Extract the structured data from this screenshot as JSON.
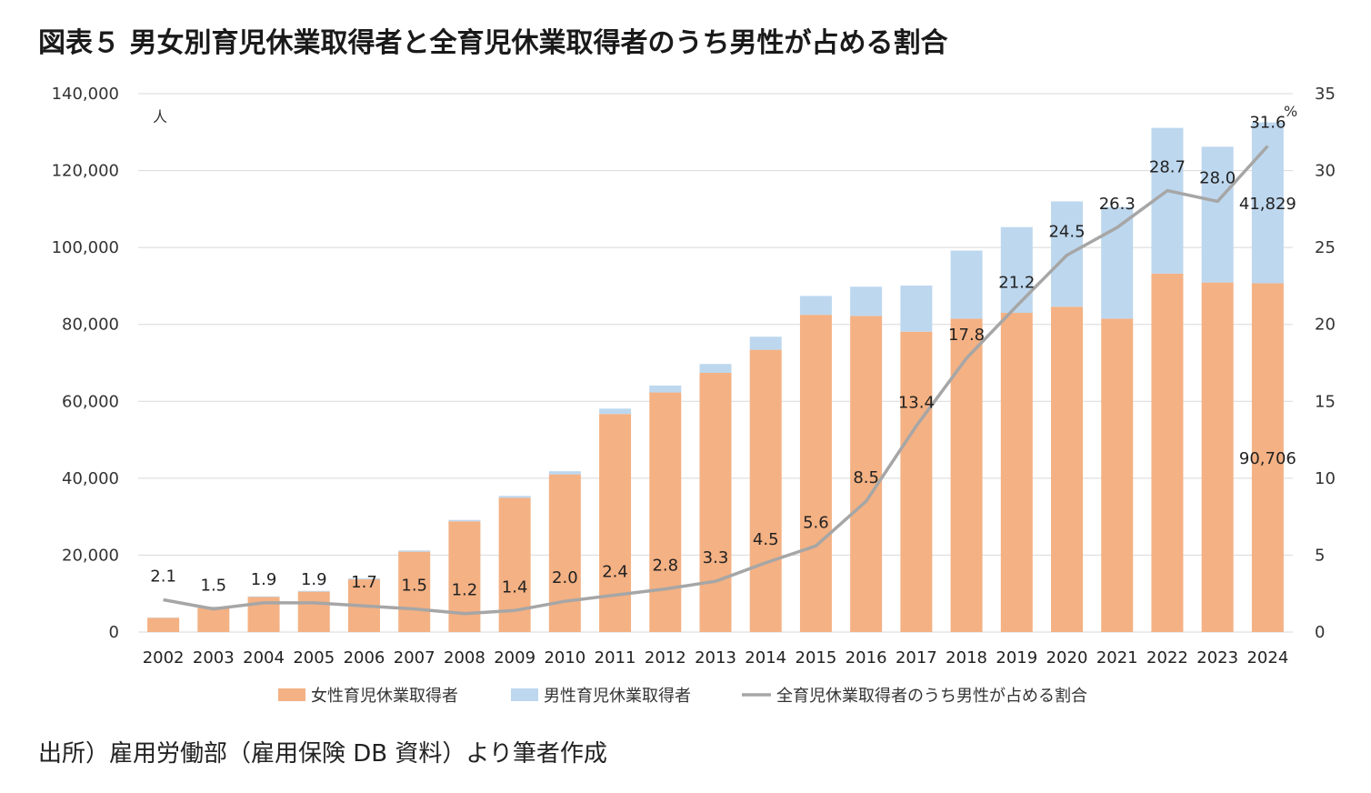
{
  "title": "図表５ 男女別育児休業取得者と全育児休業取得者のうち男性が占める割合",
  "source": "出所）雇用労働部（雇用保険 DB 資料）より筆者作成",
  "colors": {
    "female": "#f4b183",
    "male": "#bdd7ee",
    "line": "#a6a6a6",
    "grid": "#d9d9d9"
  },
  "chart_data": {
    "type": "bar",
    "stacked": true,
    "title": "図表５ 男女別育児休業取得者と全育児休業取得者のうち男性が占める割合",
    "categories": [
      "2002",
      "2003",
      "2004",
      "2005",
      "2006",
      "2007",
      "2008",
      "2009",
      "2010",
      "2011",
      "2012",
      "2013",
      "2014",
      "2015",
      "2016",
      "2017",
      "2018",
      "2019",
      "2020",
      "2021",
      "2022",
      "2023",
      "2024"
    ],
    "left_axis": {
      "unit": "人",
      "ylim": [
        0,
        140000
      ],
      "ticks": [
        "0",
        "20,000",
        "40,000",
        "60,000",
        "80,000",
        "100,000",
        "120,000",
        "140,000"
      ],
      "tick_values": [
        0,
        20000,
        40000,
        60000,
        80000,
        100000,
        120000,
        140000
      ]
    },
    "right_axis": {
      "unit": "%",
      "ylim": [
        0,
        35
      ],
      "ticks": [
        "0",
        "5",
        "10",
        "15",
        "20",
        "25",
        "30",
        "35"
      ],
      "tick_values": [
        0,
        5,
        10,
        15,
        20,
        25,
        30,
        35
      ]
    },
    "series": [
      {
        "name": "女性育児休業取得者",
        "type": "bar",
        "axis": "left",
        "values": [
          3700,
          6500,
          9100,
          10500,
          13700,
          20900,
          28800,
          34900,
          41000,
          56700,
          62300,
          67400,
          73400,
          82500,
          82200,
          78100,
          81500,
          83000,
          84600,
          81500,
          93200,
          90900,
          90706
        ]
      },
      {
        "name": "男性育児休業取得者",
        "type": "bar",
        "axis": "left",
        "values": [
          80,
          100,
          180,
          210,
          230,
          320,
          350,
          500,
          820,
          1400,
          1800,
          2300,
          3400,
          4900,
          7600,
          12000,
          17700,
          22300,
          27400,
          29000,
          37900,
          35300,
          41829
        ]
      },
      {
        "name": "全育児休業取得者のうち男性が占める割合",
        "type": "line",
        "axis": "right",
        "values": [
          2.1,
          1.5,
          1.9,
          1.9,
          1.7,
          1.5,
          1.2,
          1.4,
          2.0,
          2.4,
          2.8,
          3.3,
          4.5,
          5.6,
          8.5,
          13.4,
          17.8,
          21.2,
          24.5,
          26.3,
          28.7,
          28.0,
          31.6
        ],
        "labels": [
          "2.1",
          "1.5",
          "1.9",
          "1.9",
          "1.7",
          "1.5",
          "1.2",
          "1.4",
          "2.0",
          "2.4",
          "2.8",
          "3.3",
          "4.5",
          "5.6",
          "8.5",
          "13.4",
          "17.8",
          "21.2",
          "24.5",
          "26.3",
          "28.7",
          "28.0",
          "31.6"
        ]
      }
    ],
    "value_labels": [
      {
        "series": "男性育児休業取得者",
        "category": "2024",
        "text": "41,829"
      },
      {
        "series": "女性育児休業取得者",
        "category": "2024",
        "text": "90,706"
      }
    ],
    "legend": [
      "女性育児休業取得者",
      "男性育児休業取得者",
      "全育児休業取得者のうち男性が占める割合"
    ],
    "legend_position": "bottom",
    "grid": true
  }
}
